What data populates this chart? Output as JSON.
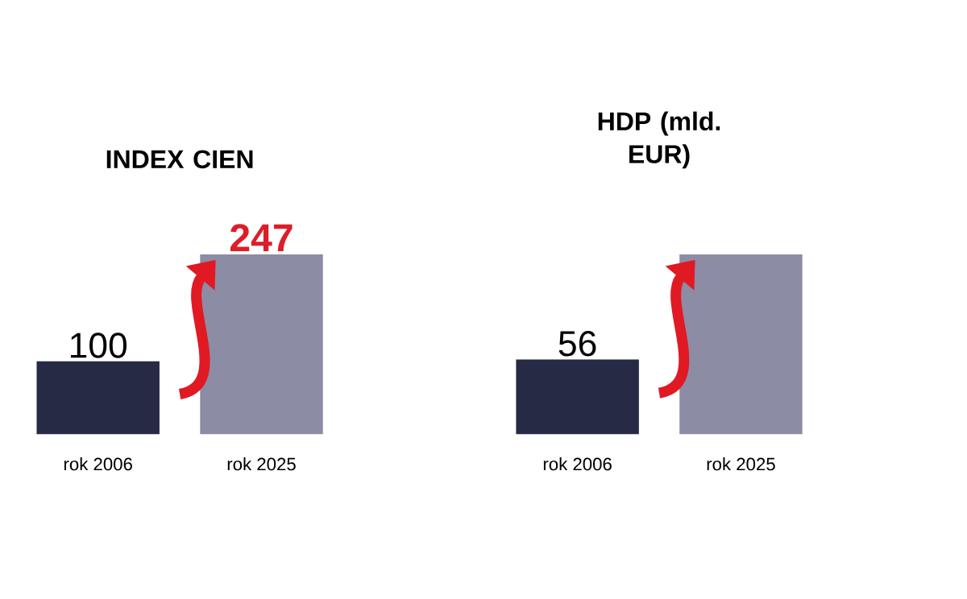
{
  "chart_data": [
    {
      "type": "bar",
      "title": "INDEX CIEN",
      "categories": [
        "rok 2006",
        "rok 2025"
      ],
      "values": [
        100,
        247
      ],
      "colors": [
        "#262a45",
        "#8c8ca4"
      ],
      "value_labels": [
        "100",
        "247"
      ]
    },
    {
      "type": "bar",
      "title": "HDP (mld. EUR)",
      "categories": [
        "rok 2006",
        "rok 2025"
      ],
      "values": [
        56,
        135
      ],
      "colors": [
        "#262a45",
        "#8c8ca4"
      ],
      "value_labels": [
        "56",
        null
      ]
    }
  ]
}
